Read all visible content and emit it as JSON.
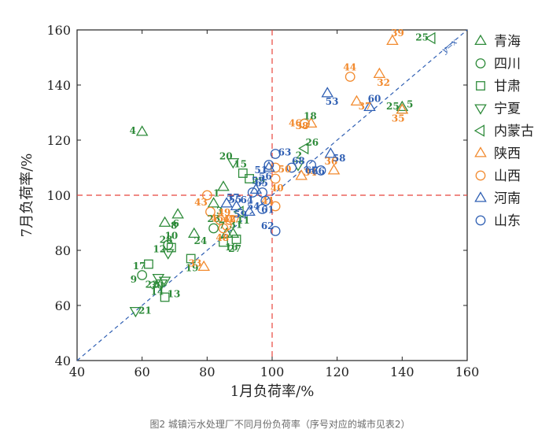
{
  "caption": "图2 城镇污水处理厂不同月份负荷率（序号对应的城市见表2）",
  "chart_data": {
    "type": "scatter",
    "xlabel": "1月负荷率/%",
    "ylabel": "7月负荷率/%",
    "xlim": [
      40,
      160
    ],
    "ylim": [
      40,
      160
    ],
    "x_ticks": [
      "40",
      "60",
      "80",
      "100",
      "120",
      "140",
      "160"
    ],
    "y_ticks": [
      "40",
      "60",
      "80",
      "100",
      "120",
      "140",
      "160"
    ],
    "grid": false,
    "legend_position": "right",
    "reference_lines": {
      "x": 100,
      "y": 100,
      "color": "#e8453c"
    },
    "diagonal": {
      "label": "y=x",
      "color": "#2f5fb3"
    },
    "series": [
      {
        "name": "青海",
        "marker": "triangle-up",
        "color": "#2e8b3a",
        "points": [
          {
            "id": "1",
            "x": 85,
            "y": 103
          },
          {
            "id": "3",
            "x": 82,
            "y": 97
          },
          {
            "id": "4",
            "x": 60,
            "y": 123
          },
          {
            "id": "5",
            "x": 140,
            "y": 131
          },
          {
            "id": "6",
            "x": 71,
            "y": 93
          },
          {
            "id": "7",
            "x": 86,
            "y": 86
          },
          {
            "id": "8",
            "x": 67,
            "y": 90
          },
          {
            "id": "24",
            "x": 76,
            "y": 86
          },
          {
            "id": "25",
            "x": 140,
            "y": 132
          },
          {
            "id": "31",
            "x": 88,
            "y": 86
          }
        ]
      },
      {
        "name": "四川",
        "marker": "circle",
        "color": "#2e8b3a",
        "points": [
          {
            "id": "9",
            "x": 60,
            "y": 71
          },
          {
            "id": "10",
            "x": 68,
            "y": 82
          },
          {
            "id": "18",
            "x": 110,
            "y": 126
          },
          {
            "id": "23",
            "x": 82,
            "y": 88
          }
        ]
      },
      {
        "name": "甘肃",
        "marker": "square",
        "color": "#2e8b3a",
        "points": [
          {
            "id": "13",
            "x": 67,
            "y": 63
          },
          {
            "id": "17",
            "x": 62,
            "y": 75
          },
          {
            "id": "19",
            "x": 75,
            "y": 77
          },
          {
            "id": "28",
            "x": 69,
            "y": 81
          },
          {
            "id": "16",
            "x": 85,
            "y": 83
          },
          {
            "id": "27",
            "x": 89,
            "y": 84
          },
          {
            "id": "29",
            "x": 93,
            "y": 106
          },
          {
            "id": "15",
            "x": 91,
            "y": 108
          }
        ]
      },
      {
        "name": "宁夏",
        "marker": "triangle-down",
        "color": "#2e8b3a",
        "points": [
          {
            "id": "21",
            "x": 58,
            "y": 58
          },
          {
            "id": "22",
            "x": 65,
            "y": 70
          },
          {
            "id": "14",
            "x": 66,
            "y": 68
          },
          {
            "id": "30",
            "x": 67,
            "y": 69
          },
          {
            "id": "12",
            "x": 68,
            "y": 79
          },
          {
            "id": "20",
            "x": 88,
            "y": 112
          },
          {
            "id": "2",
            "x": 108,
            "y": 111
          }
        ]
      },
      {
        "name": "内蒙古",
        "marker": "triangle-left",
        "color": "#2e8b3a",
        "points": [
          {
            "id": "26",
            "x": 110,
            "y": 117
          },
          {
            "id": "11",
            "x": 90,
            "y": 94
          },
          {
            "id": "25",
            "x": 149,
            "y": 157
          }
        ]
      },
      {
        "name": "陕西",
        "marker": "triangle-up",
        "color": "#f28a2e",
        "points": [
          {
            "id": "32",
            "x": 133,
            "y": 144
          },
          {
            "id": "33",
            "x": 79,
            "y": 74
          },
          {
            "id": "34",
            "x": 109,
            "y": 107
          },
          {
            "id": "35",
            "x": 140,
            "y": 131
          },
          {
            "id": "36",
            "x": 119,
            "y": 109
          },
          {
            "id": "37",
            "x": 126,
            "y": 134
          },
          {
            "id": "38",
            "x": 112,
            "y": 126
          },
          {
            "id": "39",
            "x": 137,
            "y": 156
          }
        ]
      },
      {
        "name": "山西",
        "marker": "circle",
        "color": "#f28a2e",
        "points": [
          {
            "id": "40",
            "x": 101,
            "y": 106
          },
          {
            "id": "41",
            "x": 101,
            "y": 96
          },
          {
            "id": "42",
            "x": 84,
            "y": 91
          },
          {
            "id": "43",
            "x": 80,
            "y": 100
          },
          {
            "id": "44",
            "x": 124,
            "y": 143
          },
          {
            "id": "45",
            "x": 81,
            "y": 94
          },
          {
            "id": "46",
            "x": 110,
            "y": 126
          },
          {
            "id": "47",
            "x": 86,
            "y": 89
          },
          {
            "id": "48",
            "x": 85,
            "y": 88
          },
          {
            "id": "49",
            "x": 87,
            "y": 91
          },
          {
            "id": "50",
            "x": 101,
            "y": 110
          }
        ]
      },
      {
        "name": "河南",
        "marker": "triangle-up",
        "color": "#2f5fb3",
        "points": [
          {
            "id": "52",
            "x": 95,
            "y": 102
          },
          {
            "id": "53",
            "x": 117,
            "y": 137
          },
          {
            "id": "55",
            "x": 86,
            "y": 97
          },
          {
            "id": "56",
            "x": 99,
            "y": 110
          },
          {
            "id": "57",
            "x": 89,
            "y": 96
          },
          {
            "id": "58",
            "x": 118,
            "y": 115
          },
          {
            "id": "59",
            "x": 93,
            "y": 94
          },
          {
            "id": "60",
            "x": 130,
            "y": 132
          }
        ]
      },
      {
        "name": "山东",
        "marker": "circle",
        "color": "#2f5fb3",
        "points": [
          {
            "id": "51",
            "x": 99,
            "y": 111
          },
          {
            "id": "54",
            "x": 97,
            "y": 95
          },
          {
            "id": "61",
            "x": 98,
            "y": 98
          },
          {
            "id": "62",
            "x": 101,
            "y": 87
          },
          {
            "id": "63",
            "x": 101,
            "y": 115
          },
          {
            "id": "64",
            "x": 94,
            "y": 101
          },
          {
            "id": "65",
            "x": 97,
            "y": 101
          },
          {
            "id": "66",
            "x": 112,
            "y": 111
          },
          {
            "id": "67",
            "x": 115,
            "y": 109
          },
          {
            "id": "68",
            "x": 106,
            "y": 110
          }
        ]
      }
    ]
  }
}
